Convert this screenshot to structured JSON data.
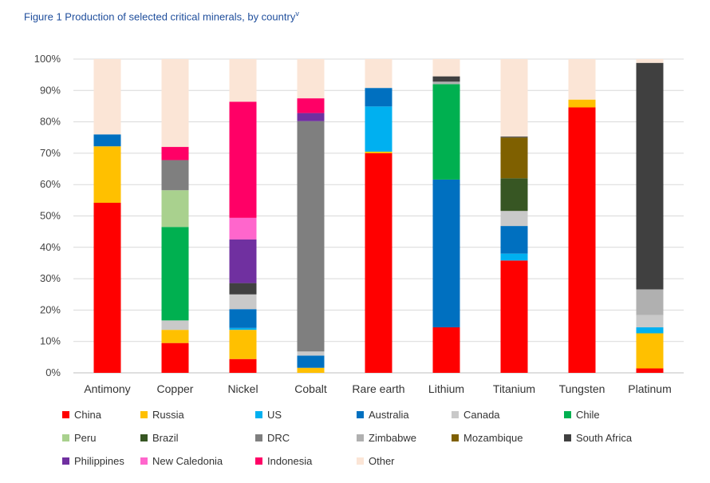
{
  "figure": {
    "title": "Figure 1 Production of selected critical minerals, by country",
    "title_superscript": "v"
  },
  "chart_data": {
    "type": "bar",
    "stacked": true,
    "categories": [
      "Antimony",
      "Copper",
      "Nickel",
      "Cobalt",
      "Rare earth",
      "Lithium",
      "Titanium",
      "Tungsten",
      "Platinum"
    ],
    "y_ticks": [
      "0%",
      "10%",
      "20%",
      "30%",
      "40%",
      "50%",
      "60%",
      "70%",
      "80%",
      "90%",
      "100%"
    ],
    "ylim": [
      0,
      100
    ],
    "grid": true,
    "legend_position": "bottom",
    "series": [
      {
        "name": "China",
        "color": "#ff0000",
        "values": [
          54.2,
          9.5,
          4.4,
          0,
          70.0,
          14.5,
          35.8,
          84.6,
          1.4
        ]
      },
      {
        "name": "Russia",
        "color": "#ffc000",
        "values": [
          18.0,
          4.2,
          9.3,
          1.6,
          0.5,
          0,
          0,
          2.5,
          11.2
        ]
      },
      {
        "name": "US",
        "color": "#00b0f0",
        "values": [
          0,
          0,
          0.6,
          0,
          14.4,
          0,
          2.2,
          0,
          1.9
        ]
      },
      {
        "name": "Australia",
        "color": "#0070c0",
        "values": [
          3.8,
          0,
          6.0,
          3.9,
          5.9,
          47.1,
          8.8,
          0,
          0
        ]
      },
      {
        "name": "Canada",
        "color": "#c9c9c9",
        "values": [
          0,
          3.0,
          4.7,
          1.3,
          0,
          0,
          4.8,
          0,
          3.9
        ]
      },
      {
        "name": "Chile",
        "color": "#00b050",
        "values": [
          0,
          29.8,
          0,
          0,
          0,
          30.4,
          0,
          0,
          0
        ]
      },
      {
        "name": "Peru",
        "color": "#a9d18e",
        "values": [
          0,
          11.7,
          0,
          0,
          0,
          0,
          0,
          0,
          0
        ]
      },
      {
        "name": "Brazil",
        "color": "#375623",
        "values": [
          0,
          0,
          0,
          0,
          0,
          0,
          10.4,
          0,
          0
        ]
      },
      {
        "name": "DRC",
        "color": "#7f7f7f",
        "values": [
          0,
          9.6,
          0,
          73.4,
          0,
          0,
          0,
          0,
          0
        ]
      },
      {
        "name": "Zimbabwe",
        "color": "#b0b0b0",
        "values": [
          0,
          0,
          0,
          0,
          0,
          0.8,
          0,
          0,
          8.2
        ]
      },
      {
        "name": "Mozambique",
        "color": "#7f6000",
        "values": [
          0,
          0,
          0,
          0,
          0,
          0,
          13.0,
          0,
          0
        ]
      },
      {
        "name": "South Africa",
        "color": "#404040",
        "values": [
          0,
          0,
          3.6,
          0,
          0,
          1.7,
          0.3,
          0,
          72.2
        ]
      },
      {
        "name": "Philippines",
        "color": "#7030a0",
        "values": [
          0,
          0,
          13.9,
          2.6,
          0,
          0,
          0,
          0,
          0
        ]
      },
      {
        "name": "New Caledonia",
        "color": "#ff66cc",
        "values": [
          0,
          0,
          6.9,
          0,
          0,
          0,
          0,
          0,
          0
        ]
      },
      {
        "name": "Indonesia",
        "color": "#ff0066",
        "values": [
          0,
          4.2,
          37.0,
          4.7,
          0,
          0,
          0,
          0,
          0
        ]
      },
      {
        "name": "Other",
        "color": "#fbe5d6",
        "values": [
          24.0,
          28.0,
          13.6,
          12.5,
          9.2,
          5.5,
          24.7,
          12.9,
          1.2
        ]
      }
    ]
  }
}
